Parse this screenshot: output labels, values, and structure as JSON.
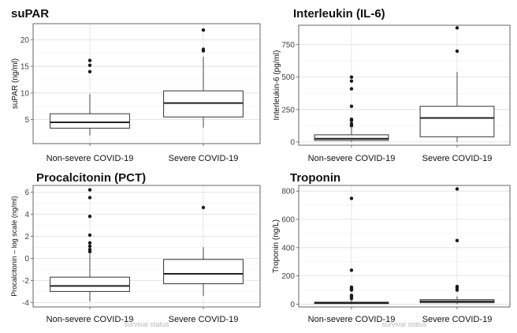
{
  "chart_data": [
    {
      "type": "box",
      "title": "suPAR",
      "ylabel": "suPAR (ng/ml)",
      "ylim": [
        0.5,
        23
      ],
      "yticks": [
        5,
        10,
        15,
        20
      ],
      "categories": [
        "Non-severe COVID-19",
        "Severe COVID-19"
      ],
      "boxes": [
        {
          "category": "Non-severe COVID-19",
          "whisker_low": 2.0,
          "q1": 3.4,
          "median": 4.5,
          "q3": 6.1,
          "whisker_high": 9.8,
          "outliers": [
            14.0,
            15.2,
            16.1
          ]
        },
        {
          "category": "Severe COVID-19",
          "whisker_low": 3.5,
          "q1": 5.5,
          "median": 8.1,
          "q3": 10.4,
          "whisker_high": 16.8,
          "outliers": [
            17.9,
            18.2,
            21.8
          ]
        }
      ],
      "grid": true
    },
    {
      "type": "box",
      "title": "Interleukin (IL-6)",
      "ylabel": "Interleukin-6 (pg/ml)",
      "ylim": [
        -25,
        900
      ],
      "yticks": [
        0,
        250,
        500,
        750
      ],
      "categories": [
        "Non-severe COVID-19",
        "Severe COVID-19"
      ],
      "boxes": [
        {
          "category": "Non-severe COVID-19",
          "whisker_low": 0,
          "q1": 12,
          "median": 25,
          "q3": 55,
          "whisker_high": 110,
          "outliers": [
            125,
            140,
            165,
            175,
            275,
            410,
            470,
            500
          ]
        },
        {
          "category": "Severe COVID-19",
          "whisker_low": 0,
          "q1": 40,
          "median": 185,
          "q3": 275,
          "whisker_high": 540,
          "outliers": [
            700,
            880
          ]
        }
      ],
      "grid": true
    },
    {
      "type": "box",
      "title": "Procalcitonin (PCT)",
      "ylabel": "Procalcitonin – log scale (ng/ml)",
      "ylim": [
        -4.4,
        6.6
      ],
      "yticks": [
        -4,
        -2,
        0,
        2,
        4,
        6
      ],
      "categories": [
        "Non-severe COVID-19",
        "Severe COVID-19"
      ],
      "xlabel": "survival status",
      "boxes": [
        {
          "category": "Non-severe COVID-19",
          "whisker_low": -3.9,
          "q1": -3.0,
          "median": -2.5,
          "q3": -1.7,
          "whisker_high": 0.4,
          "outliers": [
            0.6,
            0.8,
            1.1,
            1.4,
            2.1,
            3.8,
            5.5,
            6.2
          ]
        },
        {
          "category": "Severe COVID-19",
          "whisker_low": -3.4,
          "q1": -2.3,
          "median": -1.4,
          "q3": -0.1,
          "whisker_high": 1.0,
          "outliers": [
            4.6
          ]
        }
      ],
      "grid": true
    },
    {
      "type": "box",
      "title": "Troponin",
      "ylabel": "Troponin (ng/L)",
      "ylim": [
        -20,
        840
      ],
      "yticks": [
        0,
        200,
        400,
        600,
        800
      ],
      "categories": [
        "Non-severe COVID-19",
        "Severe COVID-19"
      ],
      "xlabel": "survival status",
      "boxes": [
        {
          "category": "Non-severe COVID-19",
          "whisker_low": 0,
          "q1": 4,
          "median": 8,
          "q3": 14,
          "whisker_high": 28,
          "outliers": [
            40,
            55,
            62,
            100,
            110,
            120,
            240,
            748
          ]
        },
        {
          "category": "Severe COVID-19",
          "whisker_low": 0,
          "q1": 10,
          "median": 20,
          "q3": 32,
          "whisker_high": 55,
          "outliers": [
            100,
            115,
            125,
            450,
            815
          ]
        }
      ],
      "grid": true
    }
  ]
}
